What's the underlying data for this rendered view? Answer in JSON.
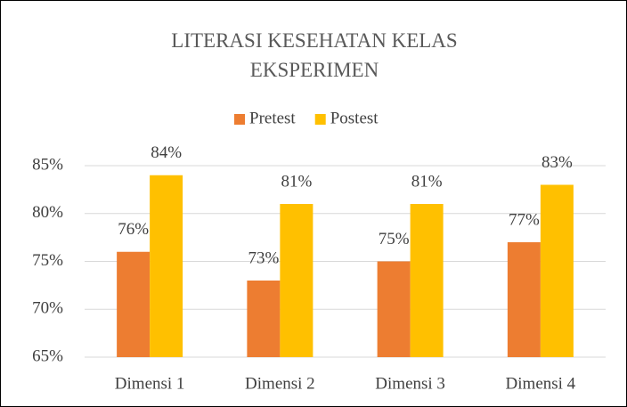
{
  "chart_data": {
    "type": "bar",
    "title": "LITERASI KESEHATAN KELAS EKSPERIMEN",
    "categories": [
      "Dimensi 1",
      "Dimensi 2",
      "Dimensi 3",
      "Dimensi 4"
    ],
    "series": [
      {
        "name": "Pretest",
        "color": "#ED7D31",
        "values": [
          76,
          73,
          75,
          77
        ],
        "value_labels": [
          "76%",
          "73%",
          "75%",
          "77%"
        ]
      },
      {
        "name": "Postest",
        "color": "#FFC000",
        "values": [
          84,
          81,
          81,
          83
        ],
        "value_labels": [
          "84%",
          "81%",
          "81%",
          "83%"
        ]
      }
    ],
    "ylim": [
      65,
      85
    ],
    "yticks": [
      {
        "value": 65,
        "label": "65%"
      },
      {
        "value": 70,
        "label": "70%"
      },
      {
        "value": 75,
        "label": "75%"
      },
      {
        "value": 80,
        "label": "80%"
      },
      {
        "value": 85,
        "label": "85%"
      }
    ],
    "grid": true,
    "legend": "top"
  }
}
